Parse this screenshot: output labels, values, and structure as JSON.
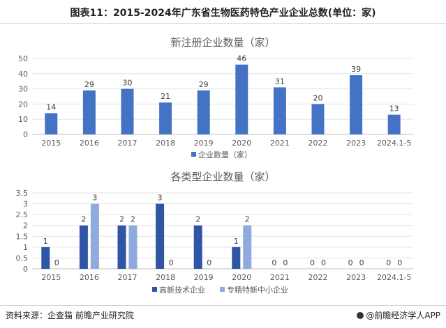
{
  "figure_title": "图表11：2015-2024年广东省生物医药特色产业企业总数(单位：家)",
  "footer": {
    "source": "资料来源：企查猫 前瞻产业研究院",
    "brand": "@前瞻经济学人APP"
  },
  "chart_data": [
    {
      "type": "bar",
      "title": "新注册企业数量（家）",
      "categories": [
        "2015",
        "2016",
        "2017",
        "2018",
        "2019",
        "2020",
        "2021",
        "2022",
        "2023",
        "2024.1-5"
      ],
      "series": [
        {
          "name": "企业数量（家）",
          "values": [
            14,
            29,
            30,
            21,
            29,
            46,
            31,
            20,
            39,
            13
          ],
          "color": "#4472C4"
        }
      ],
      "ylim": [
        0,
        50
      ],
      "yticks": [
        0,
        10,
        20,
        30,
        40,
        50
      ],
      "legend": "bottom",
      "grid": true
    },
    {
      "type": "bar",
      "title": "各类型企业数量（家）",
      "categories": [
        "2015",
        "2016",
        "2017",
        "2018",
        "2019",
        "2020",
        "2021",
        "2022",
        "2023",
        "2024.1-5"
      ],
      "series": [
        {
          "name": "高新技术企业",
          "values": [
            1,
            2,
            2,
            3,
            2,
            1,
            0,
            0,
            0,
            0
          ],
          "color": "#2F55A4"
        },
        {
          "name": "专精特新中小企业",
          "values": [
            0,
            3,
            2,
            0,
            0,
            2,
            0,
            0,
            0,
            0
          ],
          "color": "#8FAADC"
        }
      ],
      "ylim": [
        0,
        3.5
      ],
      "yticks": [
        "0",
        "0.5",
        "1",
        "1.5",
        "2",
        "2.5",
        "3",
        "3.5"
      ],
      "legend": "bottom",
      "grid": true
    }
  ]
}
